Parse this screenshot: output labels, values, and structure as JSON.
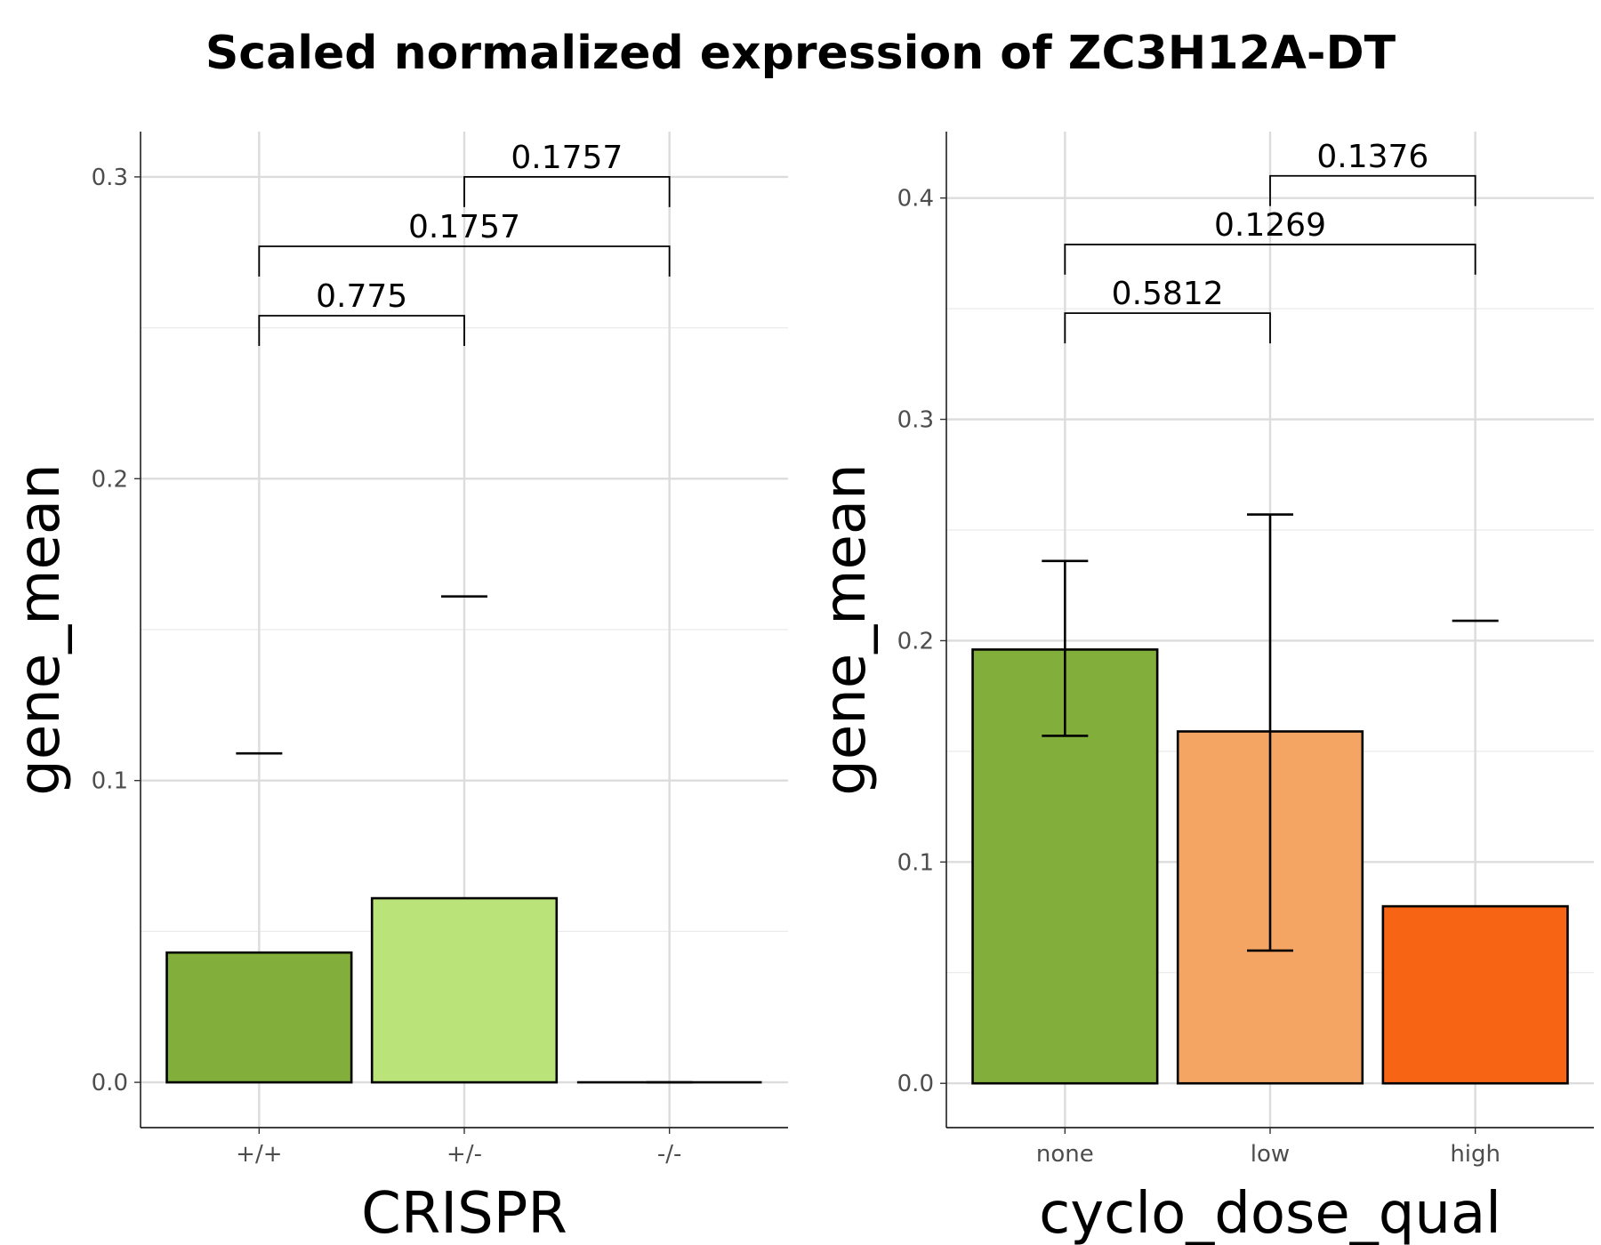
{
  "title": "Scaled normalized expression of ZC3H12A-DT",
  "chart_data": [
    {
      "type": "bar",
      "title": "",
      "xlabel": "CRISPR",
      "ylabel": "gene_mean",
      "categories": [
        "+/+",
        "+/-",
        "-/-"
      ],
      "values": [
        0.043,
        0.061,
        0.0
      ],
      "fill_colors": [
        "#82AE3C",
        "#BAE37A",
        "#FFFFFF"
      ],
      "error_bars": [
        {
          "lower": 0.109,
          "upper": 0.109
        },
        {
          "lower": 0.161,
          "upper": 0.161
        },
        {
          "lower": 0.0,
          "upper": 0.0
        }
      ],
      "ylim": [
        -0.015,
        0.315
      ],
      "yticks": [
        0.0,
        0.1,
        0.2,
        0.3
      ],
      "ytick_labels": [
        "0.0",
        "0.1",
        "0.2",
        "0.3"
      ],
      "grid": true,
      "comparisons": [
        {
          "from": 0,
          "to": 1,
          "y": 0.254,
          "label": "0.775"
        },
        {
          "from": 0,
          "to": 2,
          "y": 0.277,
          "label": "0.1757"
        },
        {
          "from": 1,
          "to": 2,
          "y": 0.3,
          "label": "0.1757"
        }
      ]
    },
    {
      "type": "bar",
      "title": "",
      "xlabel": "cyclo_dose_qual",
      "ylabel": "gene_mean",
      "categories": [
        "none",
        "low",
        "high"
      ],
      "values": [
        0.196,
        0.159,
        0.08
      ],
      "fill_colors": [
        "#82AE3C",
        "#F4A563",
        "#F76414"
      ],
      "error_bars": [
        {
          "lower": 0.157,
          "upper": 0.236
        },
        {
          "lower": 0.06,
          "upper": 0.257
        },
        {
          "lower": 0.209,
          "upper": 0.209
        }
      ],
      "ylim": [
        -0.02,
        0.43
      ],
      "yticks": [
        0.0,
        0.1,
        0.2,
        0.3,
        0.4
      ],
      "ytick_labels": [
        "0.0",
        "0.1",
        "0.2",
        "0.3",
        "0.4"
      ],
      "grid": true,
      "comparisons": [
        {
          "from": 0,
          "to": 1,
          "y": 0.348,
          "label": "0.5812"
        },
        {
          "from": 0,
          "to": 2,
          "y": 0.379,
          "label": "0.1269"
        },
        {
          "from": 1,
          "to": 2,
          "y": 0.41,
          "label": "0.1376"
        }
      ]
    }
  ]
}
